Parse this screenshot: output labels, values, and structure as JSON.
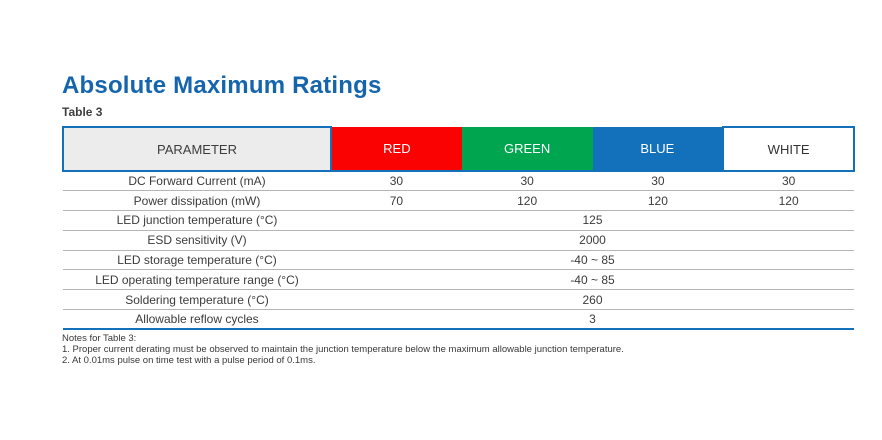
{
  "page": {
    "title": "Absolute Maximum Ratings",
    "table_caption": "Table 3"
  },
  "colors": {
    "accent_blue": "#1271BA",
    "title_blue": "#1565AE",
    "header_red": "#FB0202",
    "header_green": "#00A64F",
    "header_gray_bg": "#ECECEC",
    "separator_gray": "#B5B5B5"
  },
  "table": {
    "header": [
      "PARAMETER",
      "RED",
      "GREEN",
      "BLUE",
      "WHITE"
    ],
    "rows": [
      {
        "label": "DC Forward Current (mA)",
        "values": [
          "30",
          "30",
          "30",
          "30"
        ]
      },
      {
        "label": "Power dissipation (mW)",
        "values": [
          "70",
          "120",
          "120",
          "120"
        ]
      },
      {
        "label": "LED junction temperature (°C)",
        "merged_value": "125"
      },
      {
        "label": "ESD sensitivity (V)",
        "merged_value": "2000"
      },
      {
        "label": "LED storage temperature (°C)",
        "merged_value": "-40 ~ 85"
      },
      {
        "label": "LED operating temperature range (°C)",
        "merged_value": "-40 ~ 85"
      },
      {
        "label": "Soldering temperature (°C)",
        "merged_value": "260"
      },
      {
        "label": "Allowable reflow cycles",
        "merged_value": "3"
      }
    ]
  },
  "notes": {
    "heading": "Notes for Table 3:",
    "items": [
      "1.  Proper current derating must be observed to maintain the junction temperature below the maximum allowable junction temperature.",
      "2.  At 0.01ms pulse on time test with a pulse period of 0.1ms."
    ]
  }
}
